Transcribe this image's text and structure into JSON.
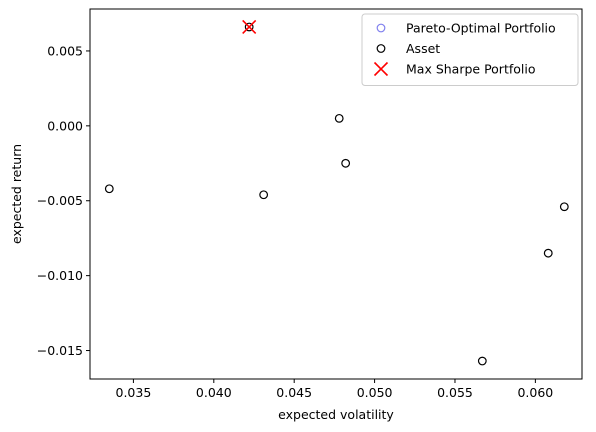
{
  "chart_data": {
    "type": "scatter",
    "title": "",
    "xlabel": "expected volatility",
    "ylabel": "expected return",
    "xlim": [
      0.0323,
      0.0629
    ],
    "ylim": [
      -0.0169,
      0.0078
    ],
    "x_ticks": [
      0.035,
      0.04,
      0.045,
      0.05,
      0.055,
      0.06
    ],
    "x_tick_labels": [
      "0.035",
      "0.040",
      "0.045",
      "0.050",
      "0.055",
      "0.060"
    ],
    "y_ticks": [
      0.005,
      0.0,
      -0.005,
      -0.01,
      -0.015
    ],
    "y_tick_labels": [
      "0.005",
      "0.000",
      "−0.005",
      "−0.010",
      "−0.015"
    ],
    "grid": false,
    "legend_position": "top-right",
    "series": [
      {
        "name": "Pareto-Optimal Portfolio",
        "marker": "circle-open",
        "color": "#8080ee",
        "points": []
      },
      {
        "name": "Asset",
        "marker": "circle-open",
        "color": "#000000",
        "points": [
          {
            "x": 0.0422,
            "y": 0.0066
          },
          {
            "x": 0.0335,
            "y": -0.0042
          },
          {
            "x": 0.0431,
            "y": -0.0046
          },
          {
            "x": 0.0478,
            "y": 0.0005
          },
          {
            "x": 0.0482,
            "y": -0.0025
          },
          {
            "x": 0.0567,
            "y": -0.0157
          },
          {
            "x": 0.0608,
            "y": -0.0085
          },
          {
            "x": 0.0618,
            "y": -0.0054
          }
        ]
      },
      {
        "name": "Max Sharpe Portfolio",
        "marker": "x",
        "color": "#ff0000",
        "points": [
          {
            "x": 0.0422,
            "y": 0.0066
          }
        ]
      }
    ]
  }
}
